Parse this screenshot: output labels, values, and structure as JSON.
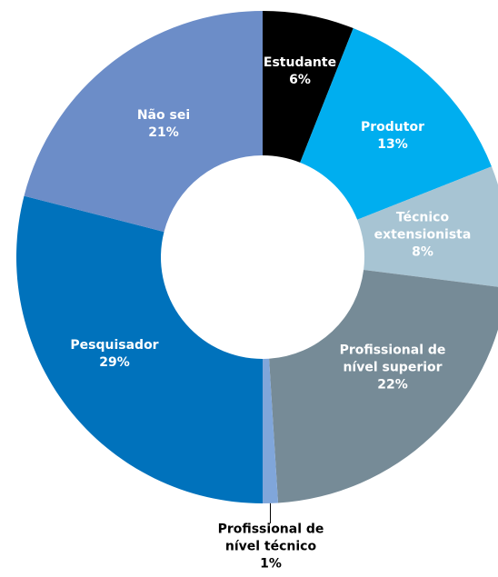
{
  "chart_data": {
    "type": "donut",
    "categories": [
      "Estudante",
      "Produtor",
      "Técnico extensionista",
      "Profissional de nível superior",
      "Profissional de nível técnico",
      "Pesquisador",
      "Não sei"
    ],
    "values": [
      6,
      13,
      8,
      22,
      1,
      29,
      21
    ],
    "value_labels": [
      "6%",
      "13%",
      "8%",
      "22%",
      "1%",
      "29%",
      "21%"
    ],
    "colors": [
      "#000000",
      "#00aeef",
      "#a7c4d3",
      "#768b97",
      "#80a6da",
      "#0072bc",
      "#6c8dc8"
    ]
  }
}
